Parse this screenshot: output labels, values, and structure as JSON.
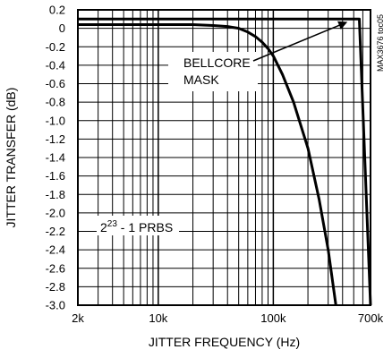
{
  "chart_data": {
    "type": "line",
    "xlabel": "JITTER FREQUENCY (Hz)",
    "ylabel": "JITTER TRANSFER (dB)",
    "x_scale": "log",
    "xlim": [
      2000,
      700000
    ],
    "ylim": [
      -3.0,
      0.2
    ],
    "grid": true,
    "x_ticks": [
      {
        "value": 2000,
        "label": "2k"
      },
      {
        "value": 10000,
        "label": "10k"
      },
      {
        "value": 100000,
        "label": "100k"
      },
      {
        "value": 700000,
        "label": "700k"
      }
    ],
    "y_ticks": [
      {
        "value": 0.2,
        "label": "0.2"
      },
      {
        "value": 0.0,
        "label": "0"
      },
      {
        "value": -0.2,
        "label": "-0.2"
      },
      {
        "value": -0.4,
        "label": "-0.4"
      },
      {
        "value": -0.6,
        "label": "-0.6"
      },
      {
        "value": -0.8,
        "label": "-0.8"
      },
      {
        "value": -1.0,
        "label": "-1.0"
      },
      {
        "value": -1.2,
        "label": "-1.2"
      },
      {
        "value": -1.4,
        "label": "-1.4"
      },
      {
        "value": -1.6,
        "label": "-1.6"
      },
      {
        "value": -1.8,
        "label": "-1.8"
      },
      {
        "value": -2.0,
        "label": "-2.0"
      },
      {
        "value": -2.2,
        "label": "-2.2"
      },
      {
        "value": -2.4,
        "label": "-2.4"
      },
      {
        "value": -2.6,
        "label": "-2.6"
      },
      {
        "value": -2.8,
        "label": "-2.8"
      },
      {
        "value": -3.0,
        "label": "-3.0"
      }
    ],
    "series": [
      {
        "points": [
          [
            2000,
            0.04
          ],
          [
            10000,
            0.04
          ],
          [
            20000,
            0.04
          ],
          [
            30000,
            0.03
          ],
          [
            40000,
            0.02
          ],
          [
            50000,
            0.0
          ],
          [
            60000,
            -0.04
          ],
          [
            70000,
            -0.09
          ],
          [
            80000,
            -0.15
          ],
          [
            90000,
            -0.22
          ],
          [
            100000,
            -0.3
          ],
          [
            120000,
            -0.5
          ],
          [
            150000,
            -0.8
          ],
          [
            200000,
            -1.3
          ],
          [
            250000,
            -1.85
          ],
          [
            300000,
            -2.4
          ],
          [
            350000,
            -3.0
          ]
        ]
      },
      {
        "points": [
          [
            2000,
            0.1
          ],
          [
            560000,
            0.1
          ],
          [
            560000,
            0.1
          ],
          [
            700000,
            -3.0
          ]
        ]
      }
    ],
    "annotations": [
      {
        "text_lines": [
          "BELLCORE",
          "MASK"
        ],
        "points_to": [
          450000,
          0.1
        ]
      },
      {
        "text_base": "2",
        "text_sup": "23",
        "text_rest": " - 1 PRBS"
      }
    ],
    "side_label": "MAX3676 toc05"
  }
}
